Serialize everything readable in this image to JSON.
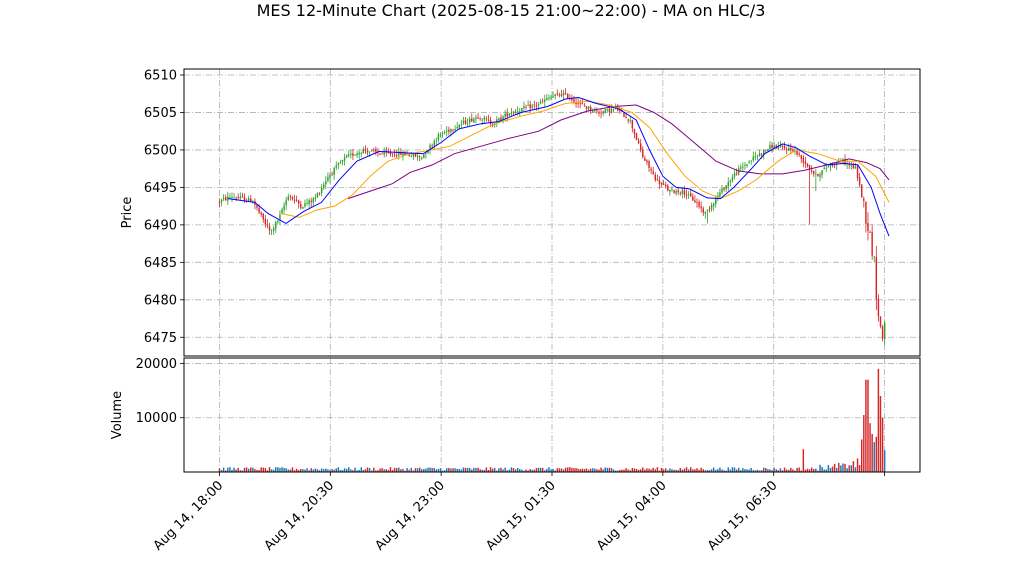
{
  "chart_data": {
    "type": "candlestick",
    "title": "MES 12-Minute Chart (2025-08-15 21:00~22:00) - MA on HLC/3",
    "price_panel": {
      "ylabel": "Price",
      "ylim": [
        6472.5,
        6510.8
      ],
      "yticks": [
        6475,
        6480,
        6485,
        6490,
        6495,
        6500,
        6505,
        6510
      ],
      "ytick_labels": [
        "6475",
        "6480",
        "6485",
        "6490",
        "6495",
        "6500",
        "6505",
        "6510"
      ],
      "grid": true
    },
    "volume_panel": {
      "ylabel": "Volume",
      "ylim": [
        0,
        21000
      ],
      "yticks": [
        10000,
        20000
      ],
      "ytick_labels": [
        "10000",
        "20000"
      ],
      "grid": true
    },
    "x_axis": {
      "ticks": [
        {
          "label": "Aug 14, 18:00",
          "hours": 0
        },
        {
          "label": "Aug 14, 20:30",
          "hours": 2.5
        },
        {
          "label": "Aug 14, 23:00",
          "hours": 5
        },
        {
          "label": "Aug 15, 01:30",
          "hours": 7.5
        },
        {
          "label": "Aug 15, 04:00",
          "hours": 10
        },
        {
          "label": "Aug 15, 06:30",
          "hours": 12.5
        },
        {
          "label": "",
          "hours": 15
        }
      ],
      "range_hours": [
        -0.8,
        15.8
      ]
    },
    "colors": {
      "up": "#2ca02c",
      "down": "#d62728",
      "ma_fast": "#0000ff",
      "ma_mid": "#ffa500",
      "ma_slow": "#800080",
      "vol_up": "#1f77b4",
      "vol_down": "#d62728"
    },
    "price_path": [
      [
        0,
        6493.0
      ],
      [
        0.3,
        6493.8
      ],
      [
        0.8,
        6493.2
      ],
      [
        1.0,
        6491.0
      ],
      [
        1.2,
        6489.0
      ],
      [
        1.4,
        6491.0
      ],
      [
        1.6,
        6494.0
      ],
      [
        1.9,
        6492.5
      ],
      [
        2.2,
        6493.5
      ],
      [
        2.5,
        6496.5
      ],
      [
        2.9,
        6499.0
      ],
      [
        3.3,
        6500.0
      ],
      [
        3.7,
        6499.5
      ],
      [
        4.2,
        6499.5
      ],
      [
        4.6,
        6499.0
      ],
      [
        5.0,
        6502.0
      ],
      [
        5.5,
        6503.5
      ],
      [
        5.9,
        6504.5
      ],
      [
        6.2,
        6503.5
      ],
      [
        6.6,
        6505.0
      ],
      [
        7.2,
        6506.0
      ],
      [
        7.5,
        6507.0
      ],
      [
        7.8,
        6507.5
      ],
      [
        8.2,
        6506.0
      ],
      [
        8.6,
        6505.0
      ],
      [
        9.0,
        6505.5
      ],
      [
        9.3,
        6504.0
      ],
      [
        9.6,
        6499.0
      ],
      [
        9.9,
        6496.0
      ],
      [
        10.2,
        6494.5
      ],
      [
        10.5,
        6494.5
      ],
      [
        10.8,
        6493.0
      ],
      [
        11.0,
        6491.5
      ],
      [
        11.3,
        6494.0
      ],
      [
        11.7,
        6497.0
      ],
      [
        12.1,
        6499.0
      ],
      [
        12.5,
        6500.5
      ],
      [
        13.0,
        6500.0
      ],
      [
        13.3,
        6498.0
      ],
      [
        13.5,
        6496.5
      ],
      [
        13.8,
        6498.0
      ],
      [
        14.1,
        6498.5
      ],
      [
        14.4,
        6497.5
      ],
      [
        14.6,
        6492.0
      ],
      [
        14.8,
        6486.0
      ],
      [
        14.9,
        6478.0
      ],
      [
        15.0,
        6475.0
      ],
      [
        15.05,
        6477.0
      ]
    ],
    "ma_fast": [
      [
        0.2,
        6493.5
      ],
      [
        0.8,
        6493.0
      ],
      [
        1.1,
        6491.5
      ],
      [
        1.5,
        6490.2
      ],
      [
        1.9,
        6491.8
      ],
      [
        2.3,
        6493.0
      ],
      [
        2.7,
        6496.0
      ],
      [
        3.1,
        6498.5
      ],
      [
        3.6,
        6499.8
      ],
      [
        4.2,
        6499.6
      ],
      [
        4.6,
        6499.5
      ],
      [
        5.0,
        6501.0
      ],
      [
        5.4,
        6502.8
      ],
      [
        5.9,
        6503.5
      ],
      [
        6.3,
        6503.8
      ],
      [
        6.8,
        6505.0
      ],
      [
        7.4,
        6505.8
      ],
      [
        7.8,
        6506.8
      ],
      [
        8.1,
        6507.0
      ],
      [
        8.5,
        6506.2
      ],
      [
        9.0,
        6505.5
      ],
      [
        9.4,
        6504.0
      ],
      [
        9.7,
        6500.0
      ],
      [
        10.0,
        6496.5
      ],
      [
        10.3,
        6495.0
      ],
      [
        10.6,
        6494.8
      ],
      [
        11.0,
        6493.6
      ],
      [
        11.3,
        6493.5
      ],
      [
        11.6,
        6495.0
      ],
      [
        12.0,
        6497.5
      ],
      [
        12.3,
        6499.5
      ],
      [
        12.7,
        6500.8
      ],
      [
        13.0,
        6500.3
      ],
      [
        13.3,
        6499.2
      ],
      [
        13.7,
        6498.0
      ],
      [
        14.1,
        6498.2
      ],
      [
        14.4,
        6498.0
      ],
      [
        14.7,
        6495.0
      ],
      [
        14.9,
        6491.5
      ],
      [
        15.1,
        6488.5
      ]
    ],
    "ma_mid": [
      [
        1.4,
        6491.5
      ],
      [
        1.8,
        6491.0
      ],
      [
        2.2,
        6492.0
      ],
      [
        2.6,
        6492.5
      ],
      [
        3.0,
        6494.0
      ],
      [
        3.4,
        6496.5
      ],
      [
        3.8,
        6498.5
      ],
      [
        4.3,
        6499.5
      ],
      [
        4.8,
        6500.0
      ],
      [
        5.2,
        6500.5
      ],
      [
        5.7,
        6502.0
      ],
      [
        6.2,
        6503.5
      ],
      [
        6.8,
        6504.5
      ],
      [
        7.3,
        6505.2
      ],
      [
        7.8,
        6506.2
      ],
      [
        8.3,
        6506.5
      ],
      [
        8.8,
        6506.0
      ],
      [
        9.3,
        6505.0
      ],
      [
        9.7,
        6503.0
      ],
      [
        10.1,
        6499.5
      ],
      [
        10.5,
        6496.5
      ],
      [
        10.9,
        6494.5
      ],
      [
        11.3,
        6493.5
      ],
      [
        11.7,
        6494.5
      ],
      [
        12.1,
        6496.0
      ],
      [
        12.6,
        6498.5
      ],
      [
        13.0,
        6500.0
      ],
      [
        13.5,
        6499.5
      ],
      [
        14.0,
        6498.5
      ],
      [
        14.4,
        6498.5
      ],
      [
        14.8,
        6496.5
      ],
      [
        15.1,
        6493.0
      ]
    ],
    "ma_slow": [
      [
        2.9,
        6493.5
      ],
      [
        3.4,
        6494.5
      ],
      [
        3.9,
        6495.5
      ],
      [
        4.3,
        6497.0
      ],
      [
        4.8,
        6498.0
      ],
      [
        5.3,
        6499.5
      ],
      [
        5.9,
        6500.5
      ],
      [
        6.5,
        6501.5
      ],
      [
        7.2,
        6502.5
      ],
      [
        7.7,
        6504.0
      ],
      [
        8.3,
        6505.2
      ],
      [
        8.9,
        6505.8
      ],
      [
        9.4,
        6506.0
      ],
      [
        9.8,
        6505.0
      ],
      [
        10.2,
        6503.5
      ],
      [
        10.7,
        6501.0
      ],
      [
        11.2,
        6498.5
      ],
      [
        11.7,
        6497.2
      ],
      [
        12.2,
        6496.8
      ],
      [
        12.7,
        6496.8
      ],
      [
        13.2,
        6497.3
      ],
      [
        13.7,
        6498.0
      ],
      [
        14.2,
        6498.8
      ],
      [
        14.6,
        6498.3
      ],
      [
        14.9,
        6497.5
      ],
      [
        15.1,
        6496.0
      ]
    ],
    "volume_peaks": [
      [
        13.15,
        4200
      ],
      [
        14.1,
        1500
      ],
      [
        14.3,
        2000
      ],
      [
        14.4,
        2500
      ],
      [
        14.5,
        6000
      ],
      [
        14.55,
        10500
      ],
      [
        14.6,
        17000
      ],
      [
        14.65,
        9000
      ],
      [
        14.7,
        7000
      ],
      [
        14.75,
        5500
      ],
      [
        14.8,
        6500
      ],
      [
        14.85,
        19000
      ],
      [
        14.9,
        14000
      ],
      [
        14.95,
        10000
      ],
      [
        15.0,
        4000
      ]
    ]
  }
}
